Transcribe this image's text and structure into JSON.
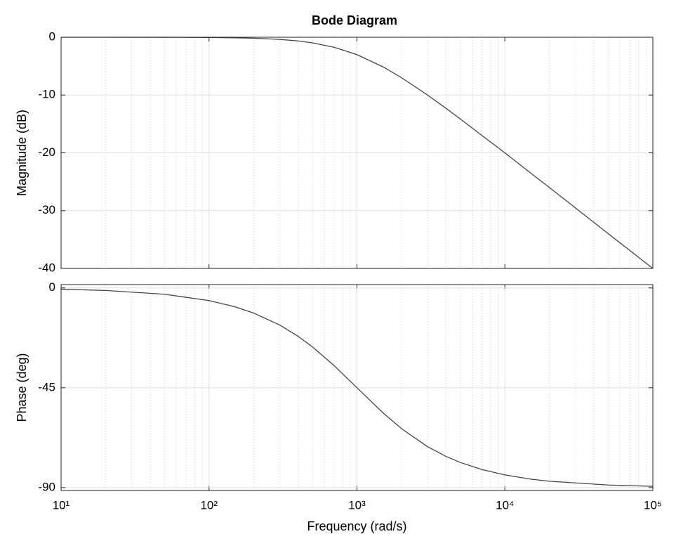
{
  "chart_data": [
    {
      "type": "line",
      "title": "Bode Diagram",
      "ylabel": "Magnitude (dB)",
      "x": [
        10,
        20,
        50,
        100,
        150,
        200,
        300,
        400,
        500,
        700,
        1000,
        1500,
        2000,
        3000,
        4000,
        5000,
        7000,
        10000,
        15000,
        20000,
        50000,
        100000
      ],
      "series": [
        {
          "color": "#444444",
          "values": [
            0,
            0,
            -0.01,
            -0.04,
            -0.1,
            -0.17,
            -0.37,
            -0.64,
            -0.97,
            -1.73,
            -3.01,
            -5.12,
            -6.99,
            -10.0,
            -12.3,
            -14.15,
            -17.0,
            -20.0,
            -23.54,
            -26.0,
            -34.0,
            -40.0
          ]
        }
      ],
      "xlim": [
        10,
        100000
      ],
      "ylim": [
        -40,
        0
      ],
      "yticks": [
        0,
        -10,
        -20,
        -30,
        -40
      ],
      "xscale": "log",
      "grid": true,
      "minor_grid": true
    },
    {
      "type": "line",
      "ylabel": "Phase (deg)",
      "xlabel": "Frequency  (rad/s)",
      "x": [
        10,
        20,
        50,
        100,
        150,
        200,
        300,
        400,
        500,
        700,
        1000,
        1500,
        2000,
        3000,
        4000,
        5000,
        7000,
        10000,
        15000,
        20000,
        50000,
        100000
      ],
      "series": [
        {
          "color": "#444444",
          "values": [
            -0.57,
            -1.15,
            -2.86,
            -5.71,
            -8.53,
            -11.31,
            -16.7,
            -21.8,
            -26.57,
            -34.99,
            -45,
            -56.31,
            -63.43,
            -71.57,
            -75.96,
            -78.69,
            -81.87,
            -84.29,
            -86.19,
            -87.14,
            -88.85,
            -89.43
          ]
        }
      ],
      "xlim": [
        10,
        100000
      ],
      "ylim": [
        -91.3,
        1.5
      ],
      "yticks": [
        0,
        -45,
        -90
      ],
      "xticks": [
        {
          "value": 10,
          "label": "10¹"
        },
        {
          "value": 100,
          "label": "10²"
        },
        {
          "value": 1000,
          "label": "10³"
        },
        {
          "value": 10000,
          "label": "10⁴"
        },
        {
          "value": 100000,
          "label": "10⁵"
        }
      ],
      "xscale": "log",
      "grid": true,
      "minor_grid": true
    }
  ]
}
